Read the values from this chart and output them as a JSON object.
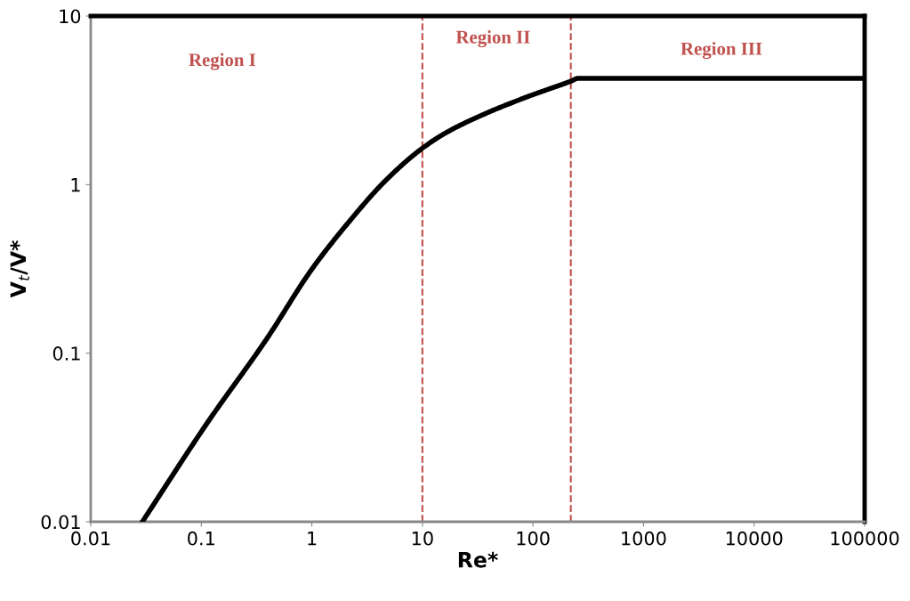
{
  "chart_data": {
    "type": "line",
    "xlabel": "Re*",
    "ylabel": "V$_{t}$/V*",
    "log": "xy",
    "x": [
      0.0293,
      0.113,
      0.392,
      0.99,
      2.07,
      4.6,
      9.7,
      15.9,
      35.3,
      92.5,
      221,
      256,
      100000
    ],
    "series": [
      {
        "color": "#000000",
        "values": [
          0.01,
          0.0385,
          0.122,
          0.312,
          0.58,
          1.05,
          1.62,
          2.01,
          2.6,
          3.35,
          4.11,
          4.27,
          4.27
        ]
      }
    ],
    "xlim": [
      0.01,
      100000
    ],
    "ylim": [
      0.01,
      10
    ],
    "xticks": [
      0.01,
      0.1,
      1,
      10,
      100,
      1000,
      10000,
      100000
    ],
    "yticks": [
      0.01,
      0.1,
      1,
      10
    ],
    "ref_lines": [
      {
        "axis": "x",
        "value": 10,
        "color": "#c0504d",
        "line_style": "dashed"
      },
      {
        "axis": "x",
        "value": 220,
        "color": "#c0504d",
        "line_style": "dashed"
      }
    ],
    "annotations": [
      "Region I",
      "Region II",
      "Region III"
    ],
    "grid": false,
    "legend": false,
    "marker": "none",
    "line_style": "solid"
  }
}
